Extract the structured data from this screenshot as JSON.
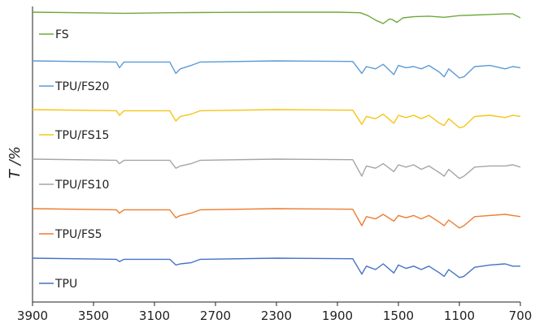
{
  "chart_data": {
    "type": "line",
    "title": "",
    "xlabel": "",
    "ylabel": "T /%",
    "xlim": [
      3900,
      700
    ],
    "x_ticks": [
      3900,
      3500,
      3100,
      2700,
      2300,
      1900,
      1500,
      1100,
      700
    ],
    "grid": false,
    "legend": "inline-left",
    "series": [
      {
        "name": "FS",
        "color": "#6fa83c",
        "baseline": 0.0,
        "points": [
          [
            3900,
            0
          ],
          [
            3300,
            2
          ],
          [
            3000,
            1
          ],
          [
            2700,
            0.5
          ],
          [
            2300,
            0
          ],
          [
            1900,
            0
          ],
          [
            1750,
            1
          ],
          [
            1700,
            6
          ],
          [
            1650,
            14
          ],
          [
            1600,
            20
          ],
          [
            1560,
            12
          ],
          [
            1540,
            13
          ],
          [
            1510,
            18
          ],
          [
            1470,
            10
          ],
          [
            1400,
            8
          ],
          [
            1300,
            7
          ],
          [
            1200,
            9
          ],
          [
            1100,
            6
          ],
          [
            1000,
            5
          ],
          [
            900,
            4
          ],
          [
            800,
            3
          ],
          [
            750,
            3
          ],
          [
            700,
            10
          ]
        ]
      },
      {
        "name": "TPU/FS20",
        "color": "#5b9bd5",
        "baseline": 0.0,
        "points": [
          [
            3900,
            0
          ],
          [
            3350,
            2
          ],
          [
            3330,
            12
          ],
          [
            3300,
            2
          ],
          [
            3000,
            2
          ],
          [
            2960,
            22
          ],
          [
            2930,
            14
          ],
          [
            2860,
            8
          ],
          [
            2800,
            2
          ],
          [
            2300,
            0
          ],
          [
            1800,
            1
          ],
          [
            1740,
            22
          ],
          [
            1710,
            10
          ],
          [
            1650,
            14
          ],
          [
            1600,
            6
          ],
          [
            1530,
            24
          ],
          [
            1500,
            8
          ],
          [
            1450,
            12
          ],
          [
            1400,
            10
          ],
          [
            1350,
            14
          ],
          [
            1300,
            8
          ],
          [
            1230,
            20
          ],
          [
            1200,
            28
          ],
          [
            1170,
            14
          ],
          [
            1100,
            30
          ],
          [
            1070,
            28
          ],
          [
            1000,
            10
          ],
          [
            900,
            8
          ],
          [
            800,
            14
          ],
          [
            750,
            10
          ],
          [
            700,
            12
          ]
        ]
      },
      {
        "name": "TPU/FS15",
        "color": "#f5c518",
        "baseline": 0.0,
        "points": [
          [
            3900,
            0
          ],
          [
            3350,
            2
          ],
          [
            3330,
            10
          ],
          [
            3300,
            2
          ],
          [
            3000,
            2
          ],
          [
            2960,
            20
          ],
          [
            2930,
            12
          ],
          [
            2860,
            8
          ],
          [
            2800,
            2
          ],
          [
            2300,
            0
          ],
          [
            1800,
            1
          ],
          [
            1740,
            26
          ],
          [
            1710,
            12
          ],
          [
            1650,
            16
          ],
          [
            1600,
            8
          ],
          [
            1530,
            24
          ],
          [
            1500,
            10
          ],
          [
            1450,
            14
          ],
          [
            1400,
            10
          ],
          [
            1350,
            16
          ],
          [
            1300,
            10
          ],
          [
            1230,
            24
          ],
          [
            1200,
            28
          ],
          [
            1170,
            16
          ],
          [
            1100,
            32
          ],
          [
            1070,
            30
          ],
          [
            1000,
            12
          ],
          [
            900,
            10
          ],
          [
            800,
            14
          ],
          [
            750,
            10
          ],
          [
            700,
            12
          ]
        ]
      },
      {
        "name": "TPU/FS10",
        "color": "#a5a5a5",
        "baseline": 0.0,
        "points": [
          [
            3900,
            0
          ],
          [
            3350,
            2
          ],
          [
            3330,
            8
          ],
          [
            3300,
            2
          ],
          [
            3000,
            2
          ],
          [
            2960,
            16
          ],
          [
            2930,
            12
          ],
          [
            2860,
            8
          ],
          [
            2800,
            2
          ],
          [
            2300,
            0
          ],
          [
            1800,
            1
          ],
          [
            1740,
            30
          ],
          [
            1710,
            12
          ],
          [
            1650,
            16
          ],
          [
            1600,
            8
          ],
          [
            1530,
            22
          ],
          [
            1500,
            10
          ],
          [
            1450,
            14
          ],
          [
            1400,
            10
          ],
          [
            1350,
            18
          ],
          [
            1300,
            12
          ],
          [
            1230,
            24
          ],
          [
            1200,
            30
          ],
          [
            1170,
            18
          ],
          [
            1100,
            34
          ],
          [
            1070,
            30
          ],
          [
            1000,
            14
          ],
          [
            900,
            12
          ],
          [
            800,
            12
          ],
          [
            750,
            10
          ],
          [
            700,
            14
          ]
        ]
      },
      {
        "name": "TPU/FS5",
        "color": "#ed7d31",
        "baseline": 0.0,
        "points": [
          [
            3900,
            0
          ],
          [
            3350,
            2
          ],
          [
            3330,
            8
          ],
          [
            3300,
            2
          ],
          [
            3000,
            2
          ],
          [
            2960,
            16
          ],
          [
            2930,
            12
          ],
          [
            2860,
            8
          ],
          [
            2800,
            2
          ],
          [
            2300,
            0
          ],
          [
            1800,
            1
          ],
          [
            1740,
            30
          ],
          [
            1710,
            14
          ],
          [
            1650,
            18
          ],
          [
            1600,
            10
          ],
          [
            1530,
            22
          ],
          [
            1500,
            12
          ],
          [
            1450,
            16
          ],
          [
            1400,
            12
          ],
          [
            1350,
            18
          ],
          [
            1300,
            12
          ],
          [
            1230,
            24
          ],
          [
            1200,
            30
          ],
          [
            1170,
            20
          ],
          [
            1100,
            34
          ],
          [
            1070,
            30
          ],
          [
            1000,
            14
          ],
          [
            900,
            12
          ],
          [
            800,
            10
          ],
          [
            750,
            12
          ],
          [
            700,
            14
          ]
        ]
      },
      {
        "name": "TPU",
        "color": "#4472c4",
        "baseline": 0.0,
        "points": [
          [
            3900,
            0
          ],
          [
            3350,
            2
          ],
          [
            3330,
            6
          ],
          [
            3300,
            2
          ],
          [
            3000,
            2
          ],
          [
            2960,
            12
          ],
          [
            2930,
            10
          ],
          [
            2860,
            8
          ],
          [
            2800,
            2
          ],
          [
            2300,
            0
          ],
          [
            1800,
            1
          ],
          [
            1740,
            28
          ],
          [
            1710,
            14
          ],
          [
            1650,
            20
          ],
          [
            1600,
            10
          ],
          [
            1530,
            26
          ],
          [
            1500,
            12
          ],
          [
            1450,
            18
          ],
          [
            1400,
            14
          ],
          [
            1350,
            20
          ],
          [
            1300,
            14
          ],
          [
            1230,
            26
          ],
          [
            1200,
            32
          ],
          [
            1170,
            20
          ],
          [
            1100,
            34
          ],
          [
            1070,
            32
          ],
          [
            1000,
            16
          ],
          [
            900,
            12
          ],
          [
            800,
            10
          ],
          [
            750,
            14
          ],
          [
            700,
            14
          ]
        ]
      }
    ]
  }
}
